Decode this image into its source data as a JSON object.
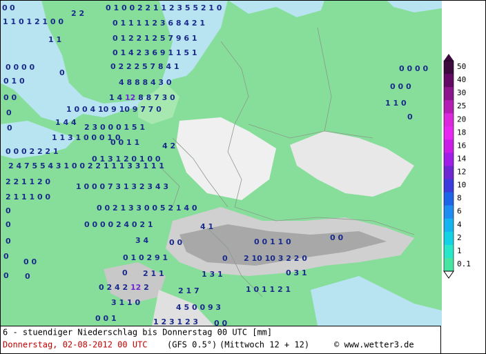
{
  "map": {
    "labels": [
      "0",
      "0",
      "2 2",
      "0 1 0 0 2 2 1 1 2 3 5 5 2 1 0",
      "1 1 0 1 2 1 0 0",
      "0 1 1 1 1 2 3 6 8 4 2 1",
      "1 1",
      "0 1 2 2 1 2 5 7 9 6 1",
      "0 1 4 2 3 6 9 1 1 5 1",
      "0 0 0 0",
      "0",
      "0 2 2 2 5 7 8 4 1",
      "0 1 0",
      "4 8 8 8 4 3 0",
      "0 0",
      "1 4 12 8 8 7 3 0",
      "1 0 0 4 10 9 10 9 7 7 0",
      "0",
      "1 4 4",
      "0",
      "2 3 0 0 0 1 5 1",
      "1 1 3 1 0 0 0 1 0",
      "0 0 1 1",
      "4 2",
      "0 0 0 2 2 2 1",
      "0 1 3 1 2 0 1 0 0",
      "2 4 7 5 5 4 3 1 0 0 2 2 1 1 1 3 3 1 1 1",
      "2 2 1 1 2 0",
      "1 0 0 0 7 3 1 3 2 3 4 3",
      "2 1 1 1 0 0",
      "0 0 2 1 3 3 0 0 5 2 1 4 0",
      "0",
      "0 0 0 0 2 4 0 2 1",
      "4 1",
      "0",
      "3 4",
      "0 0",
      "0",
      "0 1 0 2 9 1",
      "0",
      "2 10 10 3 2 2 0",
      "0 0 1 1 0",
      "0 0",
      "0 0",
      "0",
      "0",
      "0",
      "2 1 1",
      "1 3 1",
      "0",
      "0 3 1",
      "0 2 4 2 12 2",
      "2 1 7",
      "1 0 1 1 2 1",
      "3 1 1 0",
      "4 5 0 0 9 3",
      "0 0 1",
      "1 2 3 1 2 3",
      "0 0",
      "0 0 0 0",
      "0 0 0",
      "1 1 0",
      "0"
    ]
  },
  "legend": {
    "labels": [
      "50",
      "40",
      "30",
      "25",
      "20",
      "18",
      "16",
      "14",
      "12",
      "10",
      "8",
      "6",
      "4",
      "2",
      "1",
      "0.1"
    ],
    "colors": [
      "#3c0a3c",
      "#640a64",
      "#8c148c",
      "#b41eb4",
      "#dc28dc",
      "#e628f0",
      "#c81ee6",
      "#a01ee6",
      "#6e28d2",
      "#3c3cdc",
      "#1e64e6",
      "#1e8cf0",
      "#14b4f0",
      "#14d2e6",
      "#28e6c8",
      "#46e6a0"
    ]
  },
  "footer": {
    "title": "6 - stuendiger Niederschlag bis Donnerstag 00 UTC [mm]",
    "date": "Donnerstag, 02-08-2012  00 UTC",
    "model": "(GFS 0.5°)",
    "run": "(Mittwoch 12 + 12)",
    "credit": "© www.wetter3.de"
  }
}
